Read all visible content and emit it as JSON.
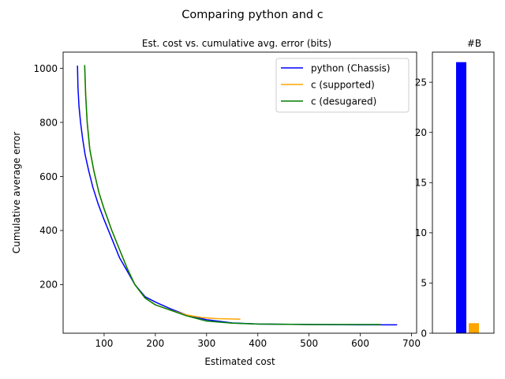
{
  "figure": {
    "suptitle": "Comparing python and c"
  },
  "chart_data": [
    {
      "type": "line",
      "title": "Est. cost vs. cumulative avg. error (bits)",
      "xlabel": "Estimated cost",
      "ylabel": "Cumulative average error",
      "xlim": [
        20,
        710
      ],
      "ylim": [
        20,
        1060
      ],
      "xticks": [
        100,
        200,
        300,
        400,
        500,
        600,
        700
      ],
      "yticks": [
        200,
        400,
        600,
        800,
        1000
      ],
      "grid": false,
      "legend_position": "top-right",
      "series": [
        {
          "name": "python (Chassis)",
          "color": "#0000ff",
          "points": [
            [
              48,
              1010
            ],
            [
              49,
              930
            ],
            [
              51,
              860
            ],
            [
              54,
              800
            ],
            [
              58,
              740
            ],
            [
              63,
              680
            ],
            [
              70,
              620
            ],
            [
              78,
              560
            ],
            [
              88,
              500
            ],
            [
              100,
              440
            ],
            [
              115,
              370
            ],
            [
              130,
              300
            ],
            [
              145,
              250
            ],
            [
              160,
              200
            ],
            [
              180,
              155
            ],
            [
              200,
              135
            ],
            [
              230,
              110
            ],
            [
              260,
              88
            ],
            [
              300,
              70
            ],
            [
              350,
              58
            ],
            [
              400,
              54
            ],
            [
              500,
              52
            ],
            [
              600,
              51
            ],
            [
              672,
              51
            ]
          ]
        },
        {
          "name": "c (supported)",
          "color": "#ffa500",
          "points": [
            [
              62,
              1010
            ],
            [
              64,
              900
            ],
            [
              67,
              800
            ],
            [
              72,
              700
            ],
            [
              80,
              620
            ],
            [
              90,
              540
            ],
            [
              100,
              480
            ],
            [
              115,
              400
            ],
            [
              130,
              330
            ],
            [
              145,
              260
            ],
            [
              160,
              200
            ],
            [
              180,
              150
            ],
            [
              200,
              125
            ],
            [
              230,
              105
            ],
            [
              260,
              88
            ],
            [
              290,
              78
            ],
            [
              320,
              74
            ],
            [
              366,
              72
            ]
          ]
        },
        {
          "name": "c (desugared)",
          "color": "#008000",
          "points": [
            [
              62,
              1012
            ],
            [
              64,
              900
            ],
            [
              67,
              800
            ],
            [
              72,
              700
            ],
            [
              80,
              620
            ],
            [
              90,
              540
            ],
            [
              100,
              480
            ],
            [
              115,
              400
            ],
            [
              130,
              330
            ],
            [
              145,
              260
            ],
            [
              160,
              200
            ],
            [
              180,
              150
            ],
            [
              200,
              125
            ],
            [
              230,
              105
            ],
            [
              260,
              85
            ],
            [
              300,
              65
            ],
            [
              350,
              57
            ],
            [
              400,
              54
            ],
            [
              500,
              52
            ],
            [
              600,
              52
            ],
            [
              640,
              52
            ]
          ]
        }
      ]
    },
    {
      "type": "bar",
      "title": "#B",
      "ylim": [
        0,
        28
      ],
      "yticks": [
        0,
        5,
        10,
        15,
        20,
        25
      ],
      "grid": false,
      "bars": [
        {
          "value": 27,
          "color": "#0000ff"
        },
        {
          "value": 1,
          "color": "#ffa500"
        }
      ]
    }
  ]
}
